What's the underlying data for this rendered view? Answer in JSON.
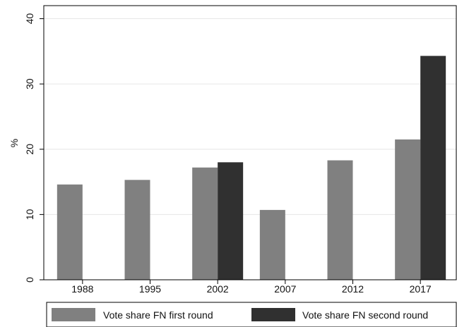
{
  "chart_data": {
    "type": "bar",
    "title": "",
    "xlabel": "",
    "ylabel": "%",
    "ylim": [
      0,
      42
    ],
    "yticks": [
      0,
      10,
      20,
      30,
      40
    ],
    "grid": true,
    "legend_position": "bottom",
    "categories": [
      "1988",
      "1995",
      "2002",
      "2007",
      "2012",
      "2017"
    ],
    "series": [
      {
        "name": "Vote share FN first round",
        "color": "#808080",
        "values": [
          14.6,
          15.3,
          17.2,
          10.7,
          18.3,
          21.5
        ]
      },
      {
        "name": "Vote share FN second round",
        "color": "#303030",
        "values": [
          null,
          null,
          18.0,
          null,
          null,
          34.3
        ]
      }
    ]
  }
}
